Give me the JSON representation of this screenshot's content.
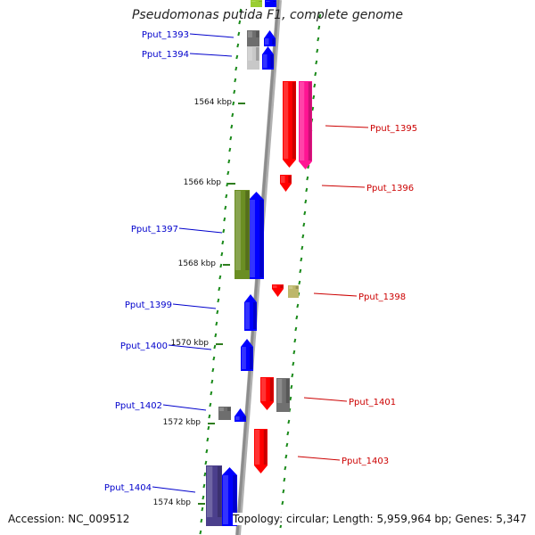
{
  "title": "Pseudomonas putida F1, complete genome",
  "accession": "Accession: NC_009512",
  "summary": "Topology: circular; Length: 5,959,964 bp; Genes: 5,347",
  "colors": {
    "backbone": "#8c8c8c",
    "forward_label": "#0000cc",
    "reverse_label": "#cc0000",
    "tick": "#2e7d1e",
    "gc_skew": "#1a8a1a"
  },
  "scale_ticks": [
    "1564 kbp",
    "1566 kbp",
    "1568 kbp",
    "1570 kbp",
    "1572 kbp",
    "1574 kbp"
  ],
  "genes": [
    {
      "id": "Pput_1393",
      "strand": "forward",
      "color": "#6e6e6e"
    },
    {
      "id": "Pput_1394",
      "strand": "forward",
      "color": "#c8c8c8"
    },
    {
      "id": "Pput_1395",
      "strand": "reverse",
      "color": "#ff1493"
    },
    {
      "id": "Pput_1396",
      "strand": "reverse",
      "color": "#ff0000"
    },
    {
      "id": "Pput_1397",
      "strand": "forward",
      "color": "#6b8e23"
    },
    {
      "id": "Pput_1398",
      "strand": "reverse",
      "color": "#bdb76b"
    },
    {
      "id": "Pput_1399",
      "strand": "forward",
      "color": "#0000ff"
    },
    {
      "id": "Pput_1400",
      "strand": "forward",
      "color": "#0000ff"
    },
    {
      "id": "Pput_1401",
      "strand": "reverse",
      "color": "#707070"
    },
    {
      "id": "Pput_1402",
      "strand": "forward",
      "color": "#6e6e6e"
    },
    {
      "id": "Pput_1403",
      "strand": "reverse",
      "color": "#ff0000"
    },
    {
      "id": "Pput_1404",
      "strand": "forward",
      "color": "#4b3f8c"
    }
  ]
}
